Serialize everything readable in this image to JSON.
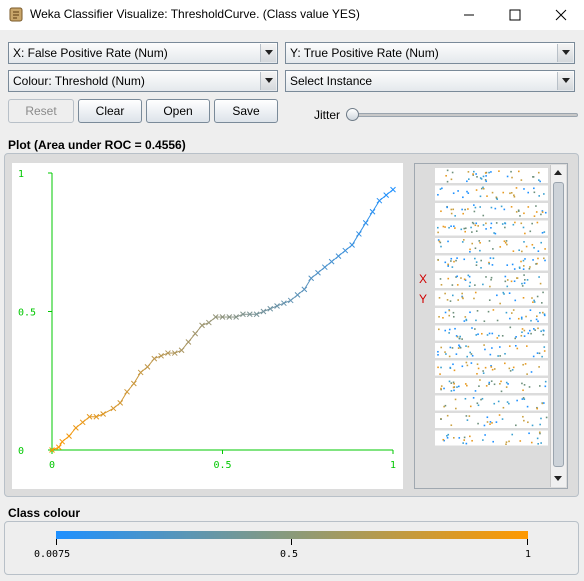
{
  "window": {
    "title": "Weka Classifier Visualize: ThresholdCurve. (Class value YES)",
    "icon": "weka-bird-icon",
    "controls": [
      "minimize-icon",
      "maximize-icon",
      "close-icon"
    ]
  },
  "selectors": {
    "x_axis": "X: False Positive Rate (Num)",
    "y_axis": "Y: True Positive Rate (Num)",
    "colour": "Colour: Threshold (Num)",
    "instance": "Select Instance"
  },
  "buttons": {
    "reset": "Reset",
    "clear": "Clear",
    "open": "Open",
    "save": "Save"
  },
  "jitter": {
    "label": "Jitter",
    "value": 0
  },
  "plot": {
    "title": "Plot (Area under ROC = 0.4556)",
    "x_ticks": [
      "0",
      "0.5",
      "1"
    ],
    "y_ticks": [
      "0",
      "0.5",
      "1"
    ],
    "axis_color": "#00c800",
    "attribute_labels": [
      "X",
      "Y"
    ]
  },
  "chart_data": {
    "type": "line",
    "title": "Plot (Area under ROC = 0.4556)",
    "xlabel": "",
    "ylabel": "",
    "xlim": [
      0,
      1
    ],
    "ylim": [
      0,
      1
    ],
    "grid": false,
    "marker": "x",
    "series": [
      {
        "x": [
          0.0,
          0.02,
          0.03,
          0.05,
          0.07,
          0.09,
          0.11,
          0.13,
          0.15,
          0.18,
          0.2,
          0.22,
          0.24,
          0.26,
          0.28,
          0.3,
          0.32,
          0.34,
          0.36,
          0.38,
          0.4,
          0.42,
          0.44,
          0.46,
          0.48,
          0.5,
          0.52,
          0.54,
          0.56,
          0.58,
          0.6,
          0.62,
          0.64,
          0.66,
          0.68,
          0.7,
          0.72,
          0.74,
          0.76,
          0.78,
          0.8,
          0.82,
          0.84,
          0.86,
          0.88,
          0.9,
          0.92,
          0.94,
          0.96,
          0.98,
          1.0
        ],
        "y": [
          0.0,
          0.01,
          0.03,
          0.05,
          0.08,
          0.1,
          0.12,
          0.12,
          0.13,
          0.15,
          0.17,
          0.21,
          0.24,
          0.28,
          0.3,
          0.33,
          0.34,
          0.35,
          0.35,
          0.36,
          0.39,
          0.42,
          0.45,
          0.46,
          0.48,
          0.48,
          0.48,
          0.48,
          0.49,
          0.49,
          0.49,
          0.5,
          0.51,
          0.52,
          0.53,
          0.54,
          0.56,
          0.58,
          0.62,
          0.64,
          0.66,
          0.68,
          0.7,
          0.72,
          0.74,
          0.78,
          0.82,
          0.86,
          0.9,
          0.92,
          0.94
        ]
      }
    ],
    "colour_scale": {
      "min": 0.0075,
      "mid": 0.5,
      "max": 1,
      "low_color": "#1e90ff",
      "high_color": "#ff9900"
    }
  },
  "legend": {
    "title": "Class colour",
    "ticks": [
      "0.0075",
      "0.5",
      "1"
    ],
    "low_color": "#1e90ff",
    "high_color": "#ff9900"
  }
}
